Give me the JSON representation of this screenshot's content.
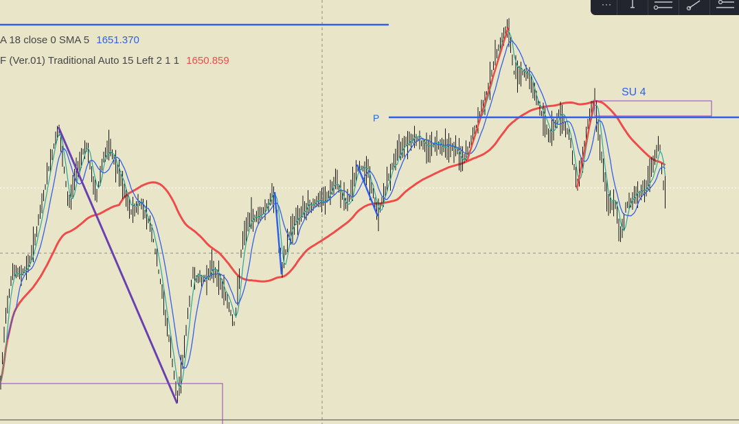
{
  "legend": {
    "line1_text": "A 18 close 0 SMA 5",
    "line1_value": "1651.370",
    "line2_text": "F (Ver.01) Traditional Auto 15 Left 2 1 1",
    "line2_value": "1650.859"
  },
  "annotations": {
    "pivot_label": "P",
    "zone_label": "SU 4"
  },
  "colors": {
    "background": "#e8e5c9",
    "candles": "#111111",
    "fast_ma": "#25a89a",
    "slow_ma_blue": "#2f5fe8",
    "long_ma_red": "#ef4b48",
    "trendline": "#6a3fb0",
    "pivot_line": "#2f5fe8",
    "zone_box": "#9a3fc0"
  },
  "toolbar": {
    "icons": [
      "dots-icon",
      "vertical-line-icon",
      "horizontal-ray-icon",
      "trend-line-icon",
      "parallel-channel-icon"
    ]
  },
  "chart_data": {
    "type": "line",
    "title": "",
    "xlabel": "",
    "ylabel": "",
    "price_path": [
      [
        0,
        575
      ],
      [
        8,
        460
      ],
      [
        18,
        395
      ],
      [
        30,
        400
      ],
      [
        42,
        385
      ],
      [
        55,
        330
      ],
      [
        70,
        250
      ],
      [
        85,
        185
      ],
      [
        100,
        300
      ],
      [
        112,
        245
      ],
      [
        125,
        210
      ],
      [
        140,
        290
      ],
      [
        150,
        230
      ],
      [
        160,
        215
      ],
      [
        175,
        260
      ],
      [
        190,
        310
      ],
      [
        205,
        295
      ],
      [
        220,
        330
      ],
      [
        235,
        420
      ],
      [
        250,
        520
      ],
      [
        258,
        585
      ],
      [
        268,
        510
      ],
      [
        280,
        400
      ],
      [
        295,
        410
      ],
      [
        310,
        390
      ],
      [
        325,
        420
      ],
      [
        342,
        475
      ],
      [
        352,
        360
      ],
      [
        362,
        320
      ],
      [
        375,
        315
      ],
      [
        390,
        300
      ],
      [
        400,
        280
      ],
      [
        410,
        400
      ],
      [
        420,
        345
      ],
      [
        430,
        320
      ],
      [
        445,
        305
      ],
      [
        460,
        295
      ],
      [
        475,
        290
      ],
      [
        490,
        265
      ],
      [
        505,
        300
      ],
      [
        520,
        245
      ],
      [
        535,
        245
      ],
      [
        550,
        315
      ],
      [
        560,
        280
      ],
      [
        575,
        230
      ],
      [
        590,
        205
      ],
      [
        605,
        200
      ],
      [
        620,
        215
      ],
      [
        635,
        210
      ],
      [
        650,
        210
      ],
      [
        665,
        220
      ],
      [
        675,
        235
      ],
      [
        690,
        195
      ],
      [
        705,
        150
      ],
      [
        715,
        110
      ],
      [
        725,
        70
      ],
      [
        740,
        40
      ],
      [
        748,
        105
      ],
      [
        760,
        105
      ],
      [
        770,
        110
      ],
      [
        785,
        155
      ],
      [
        800,
        200
      ],
      [
        815,
        165
      ],
      [
        830,
        200
      ],
      [
        840,
        275
      ],
      [
        850,
        215
      ],
      [
        860,
        160
      ],
      [
        866,
        145
      ],
      [
        875,
        220
      ],
      [
        885,
        300
      ],
      [
        895,
        295
      ],
      [
        903,
        345
      ],
      [
        912,
        300
      ],
      [
        925,
        285
      ],
      [
        940,
        275
      ],
      [
        950,
        245
      ],
      [
        960,
        205
      ],
      [
        965,
        265
      ],
      [
        970,
        285
      ]
    ],
    "swing_lines": [
      {
        "color": "purple",
        "points": [
          [
            85,
            185
          ],
          [
            258,
            588
          ]
        ]
      },
      {
        "color": "blue",
        "points": [
          [
            400,
            280
          ],
          [
            410,
            400
          ]
        ]
      },
      {
        "color": "blue",
        "points": [
          [
            520,
            240
          ],
          [
            550,
            315
          ]
        ]
      },
      {
        "color": "red",
        "points": [
          [
            680,
            235
          ],
          [
            740,
            40
          ]
        ]
      },
      {
        "color": "red",
        "points": [
          [
            840,
            275
          ],
          [
            866,
            145
          ]
        ]
      }
    ]
  }
}
